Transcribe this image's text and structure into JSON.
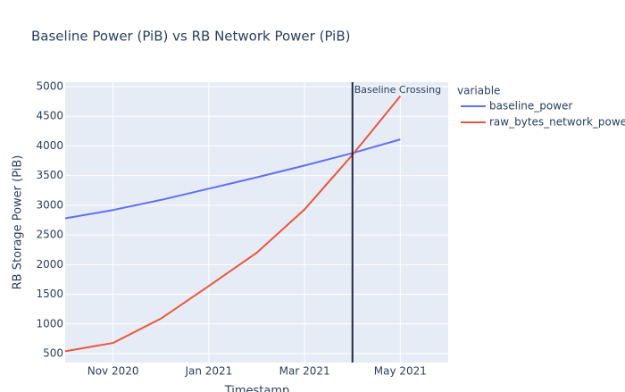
{
  "chart_data": {
    "type": "line",
    "title": "Baseline Power (PiB) vs RB Network Power (PiB)",
    "x_label": "Timestamp",
    "y_label": "RB Storage Power (PiB)",
    "legend_title": "variable",
    "x": [
      "2020-10",
      "2020-11",
      "2020-12",
      "2021-01",
      "2021-02",
      "2021-03",
      "2021-04",
      "2021-05"
    ],
    "series": [
      {
        "name": "baseline_power",
        "color": "#636efa",
        "values": [
          2780,
          2920,
          3090,
          3280,
          3470,
          3670,
          3880,
          4110
        ]
      },
      {
        "name": "raw_bytes_network_power",
        "color": "#ef553b",
        "values": [
          540,
          680,
          1090,
          1640,
          2200,
          2930,
          3850,
          4840
        ]
      }
    ],
    "xlim": [
      "2020-10",
      "2021-06"
    ],
    "xticks": [
      {
        "value": "2020-11",
        "label": "Nov 2020"
      },
      {
        "value": "2021-01",
        "label": "Jan 2021"
      },
      {
        "value": "2021-03",
        "label": "Mar 2021"
      },
      {
        "value": "2021-05",
        "label": "May 2021"
      }
    ],
    "ylim": [
      350,
      5075
    ],
    "yticks": [
      500,
      1000,
      1500,
      2000,
      2500,
      3000,
      3500,
      4000,
      4500,
      5000
    ],
    "grid": true,
    "vline": {
      "x": "2021-04",
      "label": "Baseline Crossing",
      "color": "#1f2a44"
    }
  }
}
